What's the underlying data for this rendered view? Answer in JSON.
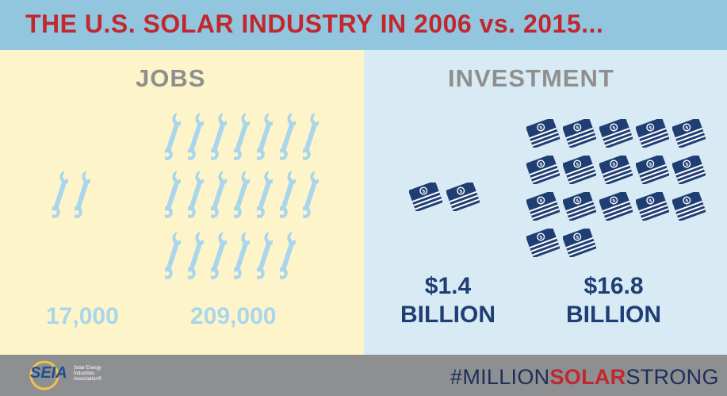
{
  "header": {
    "title": "THE U.S. SOLAR INDUSTRY IN 2006 vs. 2015..."
  },
  "jobs": {
    "title": "JOBS",
    "value_2006": "17,000",
    "value_2015": "209,000",
    "icon": "wrench-icon",
    "icon_color": "#a9d6ec"
  },
  "investment": {
    "title": "INVESTMENT",
    "value_2006_amount": "$1.4",
    "value_2006_unit": "BILLION",
    "value_2015_amount": "$16.8",
    "value_2015_unit": "BILLION",
    "icon": "money-stack-icon",
    "icon_color": "#1f3e73"
  },
  "footer": {
    "logo_text": "SEIA",
    "logo_subtitle": "Solar Energy Industries Association®",
    "hashtag_prefix": "#MILLION",
    "hashtag_highlight": "SOLAR",
    "hashtag_suffix": "STRONG"
  },
  "colors": {
    "header_bg": "#92c6df",
    "title_red": "#c1272d",
    "left_panel_bg": "#fdf5c9",
    "right_panel_bg": "#d8ebf5",
    "footer_bg": "#8e8f91"
  }
}
